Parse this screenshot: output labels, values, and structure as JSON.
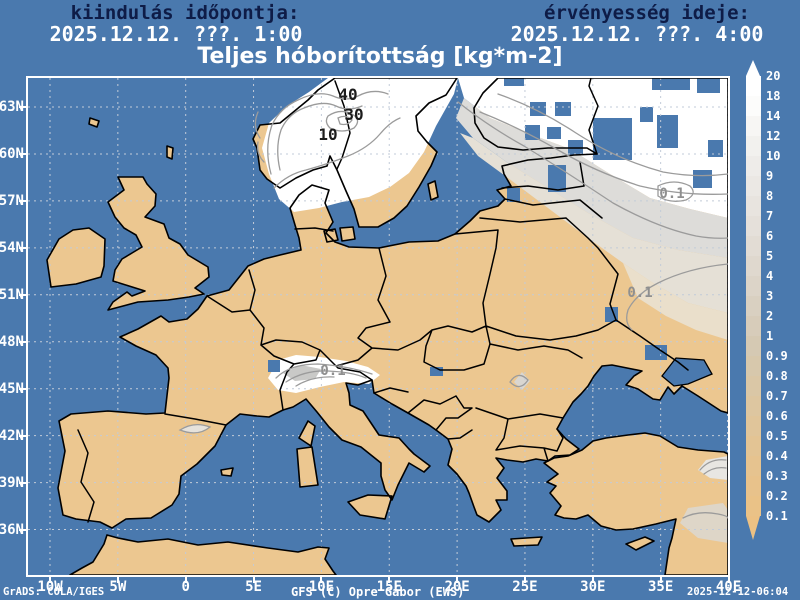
{
  "header": {
    "init_label": "kiindulás időpontja:",
    "init_value": "2025.12.12. ???. 1:00",
    "valid_label": "érvényesség ideje:",
    "valid_value": "2025.12.12. ???. 4:00",
    "title": "Teljes hóborítottság [kg*m-2]"
  },
  "map": {
    "lat_ticks": [
      "63N",
      "60N",
      "57N",
      "54N",
      "51N",
      "48N",
      "45N",
      "42N",
      "39N",
      "36N"
    ],
    "lon_ticks": [
      "10W",
      "5W",
      "0",
      "5E",
      "10E",
      "15E",
      "20E",
      "25E",
      "30E",
      "35E",
      "40E"
    ],
    "contour_labels": [
      "40",
      "30",
      "10",
      "0.1",
      "0.1",
      "0.1"
    ]
  },
  "colorbar": {
    "unit": "kg*m-2",
    "labels": [
      "20",
      "18",
      "14",
      "12",
      "10",
      "9",
      "8",
      "7",
      "6",
      "5",
      "4",
      "3",
      "2",
      "1",
      "0.9",
      "0.8",
      "0.7",
      "0.6",
      "0.5",
      "0.4",
      "0.3",
      "0.2",
      "0.1"
    ],
    "colors": [
      "#ffffff",
      "#ffffff",
      "#fcfcfb",
      "#f7f6f4",
      "#f2f1ee",
      "#eeece9",
      "#ebe8e4",
      "#e8e4df",
      "#e5e0da",
      "#e2dcd4",
      "#dfd8ce",
      "#dcd4c8",
      "#d9d0c1",
      "#d7ccba",
      "#d5c9b3",
      "#d7c8ac",
      "#dac7a6",
      "#ddc6a0",
      "#e0c59a",
      "#e3c494",
      "#e6c38f",
      "#e8c28b",
      "#eac287",
      "#ecc184"
    ]
  },
  "footer": {
    "grads": "GrADS: COLA/IGES",
    "credit": "GFS (C) Opre Gábor (EWS)",
    "timestamp": "2025-12-12-06:04"
  },
  "colors": {
    "sea": "#4a79ae",
    "land": "#ecc790",
    "snow": "#ffffff",
    "navy": "#0e1c47",
    "contour": "#9b9b9b",
    "grid": "#c2cbd8",
    "frame": "#ffffff",
    "below_min": "#ecc184"
  }
}
